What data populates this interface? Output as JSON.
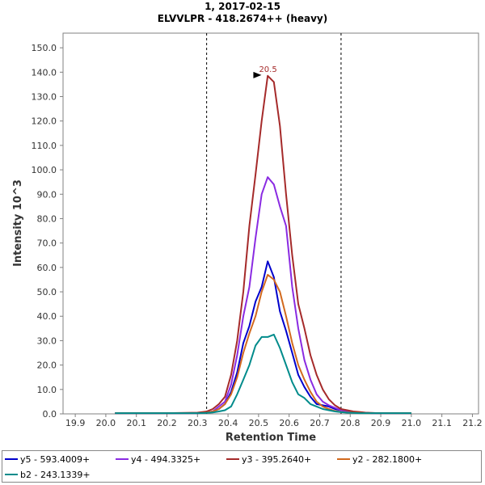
{
  "chart_data": {
    "type": "line",
    "title": "1, 2017-02-15",
    "subtitle": "ELVVLPR - 418.2674++ (heavy)",
    "xlabel": "Retention Time",
    "ylabel": "Intensity 10^3",
    "xlim": [
      19.86,
      21.22
    ],
    "ylim": [
      0,
      156
    ],
    "x_ticks": [
      "19.9",
      "20.0",
      "20.1",
      "20.2",
      "20.3",
      "20.4",
      "20.5",
      "20.6",
      "20.7",
      "20.8",
      "20.9",
      "21.0",
      "21.1",
      "21.2"
    ],
    "y_ticks": [
      "0.0",
      "10.0",
      "20.0",
      "30.0",
      "40.0",
      "50.0",
      "60.0",
      "70.0",
      "80.0",
      "90.0",
      "100.0",
      "110.0",
      "120.0",
      "130.0",
      "140.0",
      "150.0"
    ],
    "integration_bounds": [
      20.33,
      20.77
    ],
    "peak_annotation": {
      "label": "20.5",
      "x": 20.52,
      "y": 138.5
    },
    "series": [
      {
        "name": "y5 - 593.4009+",
        "color": "#0000cc",
        "x": [
          20.03,
          20.1,
          20.2,
          20.3,
          20.33,
          20.35,
          20.37,
          20.39,
          20.41,
          20.43,
          20.45,
          20.47,
          20.49,
          20.51,
          20.53,
          20.55,
          20.57,
          20.59,
          20.61,
          20.63,
          20.65,
          20.67,
          20.69,
          20.71,
          20.73,
          20.75,
          20.77,
          20.79,
          20.81,
          20.83,
          20.85,
          20.87,
          20.89,
          20.91,
          20.93,
          20.95,
          20.97,
          21.0
        ],
        "values": [
          0.3,
          0.3,
          0.3,
          0.3,
          0.5,
          1,
          2,
          4,
          9,
          17,
          29,
          36,
          46,
          52,
          62.5,
          56,
          42,
          34,
          25,
          16,
          11,
          7,
          4,
          3.5,
          3,
          2,
          1.5,
          1,
          0.8,
          0.6,
          0.4,
          0.3,
          0.3,
          0.3,
          0.3,
          0.3,
          0.3,
          0.3
        ]
      },
      {
        "name": "y4 - 494.3325+",
        "color": "#8a2be2",
        "x": [
          20.03,
          20.1,
          20.2,
          20.3,
          20.33,
          20.35,
          20.37,
          20.39,
          20.41,
          20.43,
          20.45,
          20.47,
          20.49,
          20.51,
          20.53,
          20.55,
          20.57,
          20.59,
          20.61,
          20.63,
          20.65,
          20.67,
          20.69,
          20.71,
          20.73,
          20.75,
          20.77,
          20.79,
          20.81,
          20.83,
          20.85,
          20.87,
          20.89,
          20.91,
          20.93,
          20.95,
          20.97,
          21.0
        ],
        "values": [
          0.3,
          0.3,
          0.3,
          0.3,
          0.5,
          1,
          3,
          5,
          12,
          24,
          40,
          52,
          72,
          90,
          97,
          94,
          85,
          77,
          52,
          35,
          22,
          14,
          8,
          5,
          3.5,
          2.5,
          1.5,
          1,
          0.8,
          0.6,
          0.4,
          0.3,
          0.3,
          0.3,
          0.3,
          0.3,
          0.3,
          0.3
        ]
      },
      {
        "name": "y3 - 395.2640+",
        "color": "#a52a2a",
        "x": [
          20.03,
          20.1,
          20.2,
          20.3,
          20.33,
          20.35,
          20.37,
          20.39,
          20.41,
          20.43,
          20.45,
          20.47,
          20.49,
          20.51,
          20.53,
          20.55,
          20.57,
          20.59,
          20.61,
          20.63,
          20.65,
          20.67,
          20.69,
          20.71,
          20.73,
          20.75,
          20.77,
          20.79,
          20.81,
          20.83,
          20.85,
          20.87,
          20.89,
          20.91,
          20.93,
          20.95,
          20.97,
          21.0
        ],
        "values": [
          0.3,
          0.3,
          0.3,
          0.5,
          1,
          2,
          4,
          7,
          16,
          30,
          50,
          77,
          98,
          120,
          138.5,
          136,
          118,
          90,
          65,
          45,
          35,
          24,
          16,
          10,
          6,
          3.5,
          2,
          1.5,
          1,
          0.8,
          0.5,
          0.4,
          0.3,
          0.3,
          0.3,
          0.3,
          0.3,
          0.3
        ]
      },
      {
        "name": "y2 - 282.1800+",
        "color": "#d2691e",
        "x": [
          20.03,
          20.1,
          20.2,
          20.3,
          20.33,
          20.35,
          20.37,
          20.39,
          20.41,
          20.43,
          20.45,
          20.47,
          20.49,
          20.51,
          20.53,
          20.55,
          20.57,
          20.59,
          20.61,
          20.63,
          20.65,
          20.67,
          20.69,
          20.71,
          20.73,
          20.75,
          20.77,
          20.79,
          20.81,
          20.83,
          20.85,
          20.87,
          20.89,
          20.91,
          20.93,
          20.95,
          20.97,
          21.0
        ],
        "values": [
          0.3,
          0.3,
          0.3,
          0.3,
          0.5,
          1,
          2,
          4,
          8,
          15,
          25,
          33,
          40,
          50,
          57,
          55,
          50,
          40,
          29,
          20,
          14,
          9,
          5,
          3,
          2,
          1.2,
          0.8,
          0.6,
          0.5,
          0.4,
          0.3,
          0.3,
          0.3,
          0.3,
          0.3,
          0.3,
          0.3,
          0.3
        ]
      },
      {
        "name": "b2 - 243.1339+",
        "color": "#008b8b",
        "x": [
          20.03,
          20.1,
          20.2,
          20.3,
          20.33,
          20.35,
          20.37,
          20.39,
          20.41,
          20.43,
          20.45,
          20.47,
          20.49,
          20.51,
          20.53,
          20.55,
          20.57,
          20.59,
          20.61,
          20.63,
          20.65,
          20.67,
          20.69,
          20.71,
          20.73,
          20.75,
          20.77,
          20.79,
          20.81,
          20.83,
          20.85,
          20.87,
          20.89,
          20.91,
          20.93,
          20.95,
          20.97,
          21.0
        ],
        "values": [
          0.3,
          0.3,
          0.3,
          0.3,
          0.4,
          0.6,
          1,
          1.5,
          3,
          8,
          14,
          20,
          28,
          31.5,
          31.5,
          32.5,
          27,
          20,
          13,
          8,
          6.5,
          4,
          3,
          2,
          1.5,
          1,
          0.7,
          0.5,
          0.4,
          0.3,
          0.3,
          0.3,
          0.3,
          0.3,
          0.3,
          0.3,
          0.3,
          0.3
        ]
      }
    ]
  }
}
